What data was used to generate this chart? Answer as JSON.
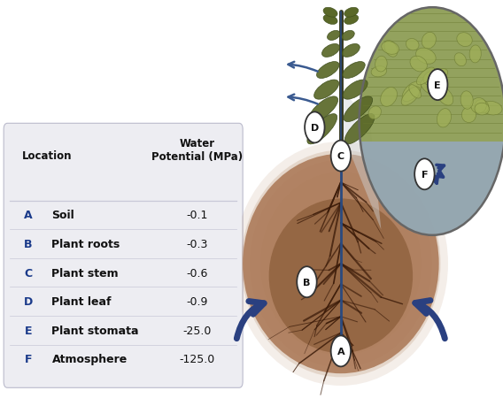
{
  "bg_color": "#f5f5f8",
  "table_bg": "#ededf2",
  "label_color": "#1a3a8a",
  "text_color": "#111111",
  "divider_color": "#c8c8d8",
  "title_left": "Location",
  "title_right": "Water\nPotential (MPa)",
  "rows": [
    {
      "letter": "A",
      "location": "Soil",
      "value": "-0.1"
    },
    {
      "letter": "B",
      "location": "Plant roots",
      "value": "-0.3"
    },
    {
      "letter": "C",
      "location": "Plant stem",
      "value": "-0.6"
    },
    {
      "letter": "D",
      "location": "Plant leaf",
      "value": "-0.9"
    },
    {
      "letter": "E",
      "location": "Plant stomata",
      "value": "-25.0"
    },
    {
      "letter": "F",
      "location": "Atmosphere",
      "value": "-125.0"
    }
  ],
  "soil_outer_color": "#b89070",
  "soil_inner_color": "#8a6040",
  "root_color": "#3a1a08",
  "stem_color": "#3a4018",
  "leaf_color": "#5a6828",
  "water_color": "#2a4a8a",
  "mag_green_top": "#8a9a50",
  "mag_green_mid": "#7a8a44",
  "mag_blue_bot": "#96a8b8",
  "arrow_color": "#2a4080",
  "label_circle_bg": "#ffffff",
  "label_circle_border": "#222222"
}
